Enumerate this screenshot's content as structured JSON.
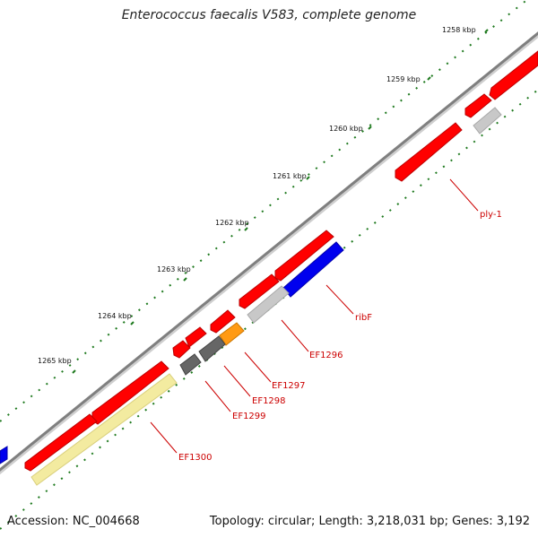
{
  "title": "Enterococcus faecalis V583, complete genome",
  "footer": {
    "accession": "Accession: NC_004668",
    "summary": "Topology: circular; Length: 3,218,031 bp; Genes: 3,192"
  },
  "colors": {
    "backbone": "#7f7f7f",
    "tick_minor": "#1f7a1f",
    "forward_cds": "#ff0000",
    "reverse_cds": "#0000ee",
    "light_gray": "#c8c8c8",
    "dark_gray": "#666666",
    "orange": "#ff9a14",
    "pale_yellow": "#f3eba0",
    "label": "#cc0000"
  },
  "ticks": [
    {
      "label": "1258 kbp"
    },
    {
      "label": "1259 kbp"
    },
    {
      "label": "1260 kbp"
    },
    {
      "label": "1261 kbp"
    },
    {
      "label": "1262 kbp"
    },
    {
      "label": "1263 kbp"
    },
    {
      "label": "1264 kbp"
    },
    {
      "label": "1265 kbp"
    }
  ],
  "gene_labels": [
    {
      "text": "ply-1"
    },
    {
      "text": "ribF"
    },
    {
      "text": "EF1296"
    },
    {
      "text": "EF1297"
    },
    {
      "text": "EF1298"
    },
    {
      "text": "EF1299"
    },
    {
      "text": "EF1300"
    }
  ]
}
